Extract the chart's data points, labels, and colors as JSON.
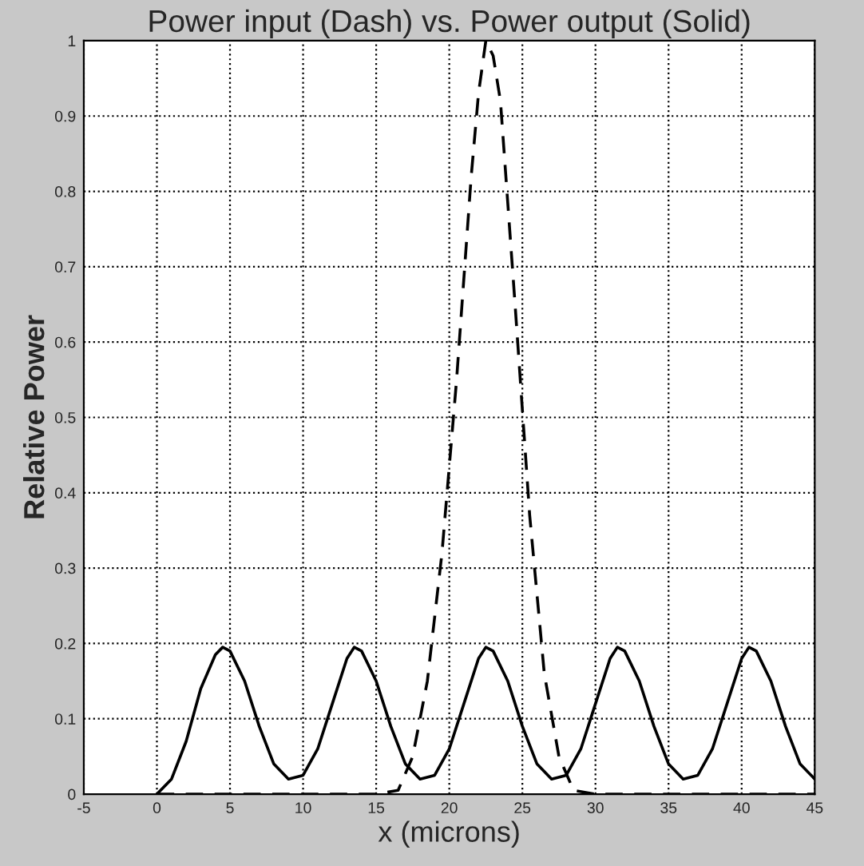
{
  "chart_data": {
    "type": "line",
    "title": "Power input (Dash) vs. Power output (Solid)",
    "xlabel": "x (microns)",
    "ylabel": "Relative Power",
    "xlim": [
      -5,
      45
    ],
    "xticks": [
      -5,
      0,
      5,
      10,
      15,
      20,
      25,
      30,
      35,
      40,
      45
    ],
    "ylim": [
      0,
      1
    ],
    "yticks": [
      0,
      0.1,
      0.2,
      0.3,
      0.4,
      0.5,
      0.6,
      0.7,
      0.8,
      0.9,
      1
    ],
    "grid": true,
    "marker": "none",
    "series": [
      {
        "color": "#000000",
        "line_style": "dashed",
        "x": [
          0,
          10,
          15,
          16.5,
          17.5,
          18.5,
          19.5,
          20.5,
          21.5,
          22,
          22.5,
          23,
          23.5,
          24.5,
          25.5,
          26.5,
          27.5,
          28.5,
          30,
          40,
          45
        ],
        "values": [
          0,
          0,
          0,
          0.005,
          0.05,
          0.15,
          0.32,
          0.55,
          0.82,
          0.93,
          1.0,
          0.98,
          0.92,
          0.65,
          0.37,
          0.16,
          0.05,
          0.005,
          0,
          0,
          0
        ]
      },
      {
        "color": "#000000",
        "line_style": "solid",
        "x": [
          0,
          1,
          2,
          3,
          4,
          4.5,
          5,
          6,
          7,
          8,
          9,
          10,
          11,
          12,
          13,
          13.5,
          14,
          15,
          16,
          17,
          18,
          19,
          20,
          21,
          22,
          22.5,
          23,
          24,
          25,
          26,
          27,
          28,
          29,
          30,
          31,
          31.5,
          32,
          33,
          34,
          35,
          36,
          37,
          38,
          39,
          40,
          40.5,
          41,
          42,
          43,
          44,
          45
        ],
        "values": [
          0,
          0.02,
          0.07,
          0.14,
          0.185,
          0.195,
          0.19,
          0.15,
          0.09,
          0.04,
          0.02,
          0.025,
          0.06,
          0.12,
          0.18,
          0.195,
          0.19,
          0.15,
          0.09,
          0.04,
          0.02,
          0.025,
          0.06,
          0.12,
          0.18,
          0.195,
          0.19,
          0.15,
          0.09,
          0.04,
          0.02,
          0.025,
          0.06,
          0.12,
          0.18,
          0.195,
          0.19,
          0.15,
          0.09,
          0.04,
          0.02,
          0.025,
          0.06,
          0.12,
          0.18,
          0.195,
          0.19,
          0.15,
          0.09,
          0.04,
          0.02
        ]
      }
    ]
  }
}
